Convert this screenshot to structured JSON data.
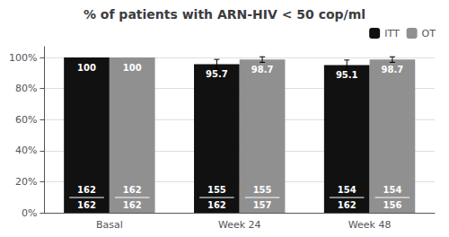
{
  "chart_data": {
    "type": "bar",
    "title": "% of patients with ARN-HIV < 50 cop/ml",
    "categories": [
      "Basal",
      "Week 24",
      "Week 48"
    ],
    "series": [
      {
        "name": "ITT",
        "color": "#111111",
        "values": [
          100,
          95.7,
          95.1
        ],
        "errors": [
          0,
          3.1,
          3.3
        ],
        "numerators": [
          162,
          155,
          154
        ],
        "denominators": [
          162,
          162,
          162
        ]
      },
      {
        "name": "OT",
        "color": "#909090",
        "values": [
          100,
          98.7,
          98.7
        ],
        "errors": [
          0,
          1.8,
          1.8
        ],
        "numerators": [
          162,
          155,
          154
        ],
        "denominators": [
          162,
          157,
          156
        ]
      }
    ],
    "ylim": [
      0,
      107
    ],
    "yticks": [
      {
        "value": 0,
        "label": "0%"
      },
      {
        "value": 20,
        "label": "20%"
      },
      {
        "value": 40,
        "label": "40%"
      },
      {
        "value": 60,
        "label": "60%"
      },
      {
        "value": 80,
        "label": "80%"
      },
      {
        "value": 100,
        "label": "100%"
      }
    ],
    "grid": true,
    "legend": "upper right",
    "data_labels": true
  }
}
